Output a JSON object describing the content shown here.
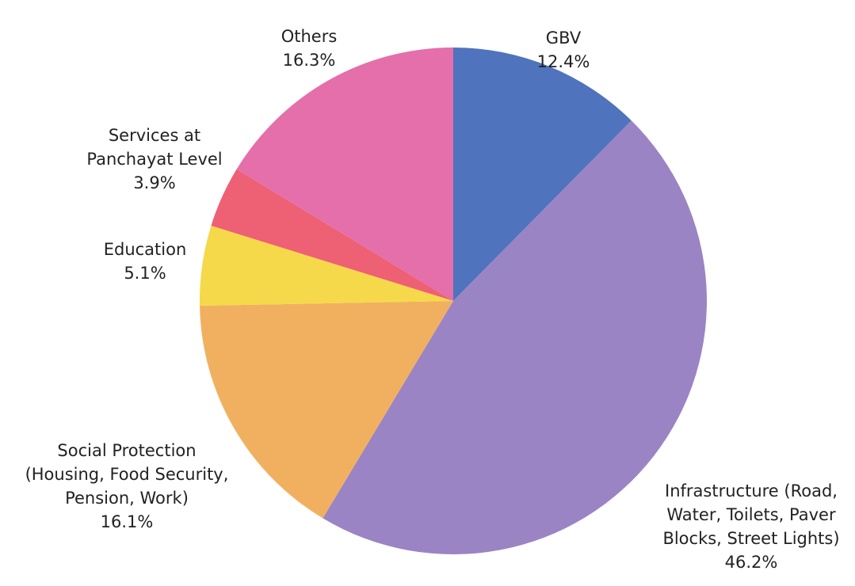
{
  "chart_data": {
    "type": "pie",
    "title": "",
    "start_angle_deg": 0,
    "direction": "clockwise",
    "slices": [
      {
        "label_lines": [
          "GBV"
        ],
        "value_text": "12.4%",
        "value": 12.4,
        "color": "#4f73bd"
      },
      {
        "label_lines": [
          "Infrastructure (Road,",
          "Water, Toilets, Paver",
          "Blocks, Street Lights)"
        ],
        "value_text": "46.2%",
        "value": 46.2,
        "color": "#9a84c4"
      },
      {
        "label_lines": [
          "Social Protection",
          "(Housing, Food Security,",
          "Pension, Work)"
        ],
        "value_text": "16.1%",
        "value": 16.1,
        "color": "#f1b060"
      },
      {
        "label_lines": [
          "Education"
        ],
        "value_text": "5.1%",
        "value": 5.1,
        "color": "#f6d94a"
      },
      {
        "label_lines": [
          "Services at",
          "Panchayat Level"
        ],
        "value_text": "3.9%",
        "value": 3.9,
        "color": "#ee6073"
      },
      {
        "label_lines": [
          "Others"
        ],
        "value_text": "16.3%",
        "value": 16.3,
        "color": "#e46fab"
      }
    ]
  }
}
